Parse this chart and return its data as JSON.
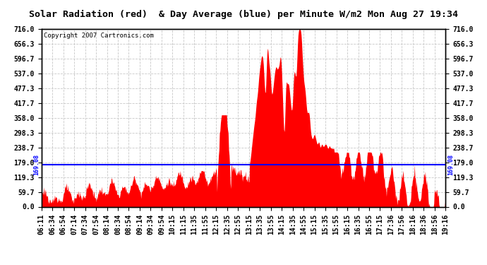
{
  "title": "Solar Radiation (red)  & Day Average (blue) per Minute W/m2 Mon Aug 27 19:34",
  "copyright": "Copyright 2007 Cartronics.com",
  "y_ticks": [
    0.0,
    59.7,
    119.3,
    179.0,
    238.7,
    298.3,
    358.0,
    417.7,
    477.3,
    537.0,
    596.7,
    656.3,
    716.0
  ],
  "day_average": 169.08,
  "x_labels": [
    "06:11",
    "06:34",
    "06:54",
    "07:14",
    "07:34",
    "07:54",
    "08:14",
    "08:34",
    "08:54",
    "09:14",
    "09:34",
    "09:54",
    "10:15",
    "11:15",
    "11:35",
    "11:55",
    "12:15",
    "12:35",
    "12:55",
    "13:15",
    "13:35",
    "13:55",
    "14:15",
    "14:35",
    "14:55",
    "15:15",
    "15:35",
    "15:55",
    "16:15",
    "16:35",
    "16:55",
    "17:15",
    "17:36",
    "17:56",
    "18:16",
    "18:36",
    "18:56",
    "19:16"
  ],
  "background_color": "#ffffff",
  "bar_color": "#ff0000",
  "avg_line_color": "#0000ff",
  "grid_color": "#c8c8c8",
  "ymin": 0.0,
  "ymax": 716.0,
  "avg_label": "169.08",
  "title_fontsize": 9.5,
  "tick_fontsize": 7.0,
  "copyright_fontsize": 6.5
}
